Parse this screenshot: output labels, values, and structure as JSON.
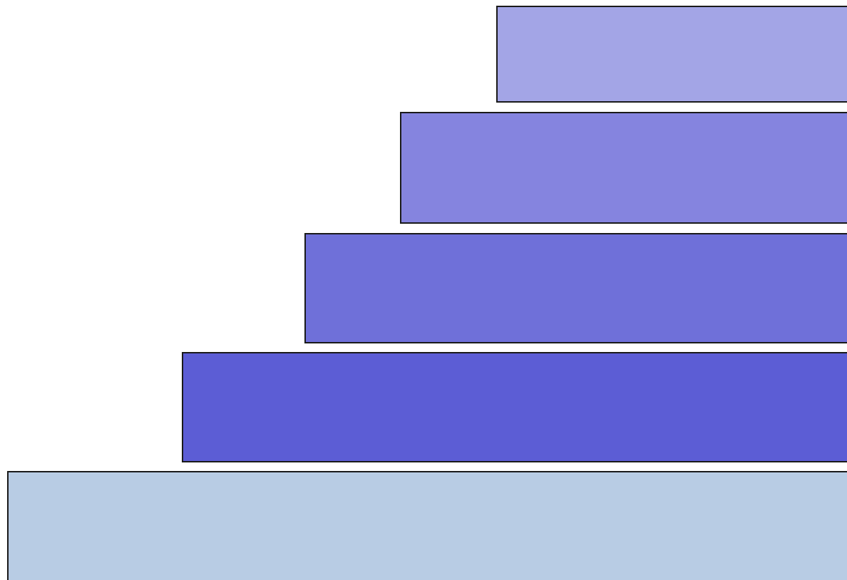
{
  "shapes": [
    {
      "name": "stacked-slab-1",
      "color": "#a3a5e6"
    },
    {
      "name": "stacked-slab-2",
      "color": "#8584df"
    },
    {
      "name": "stacked-slab-3",
      "color": "#6f70d9"
    },
    {
      "name": "stacked-slab-4",
      "color": "#5c5dd5"
    },
    {
      "name": "stacked-slab-5",
      "color": "#b8cce4"
    }
  ]
}
